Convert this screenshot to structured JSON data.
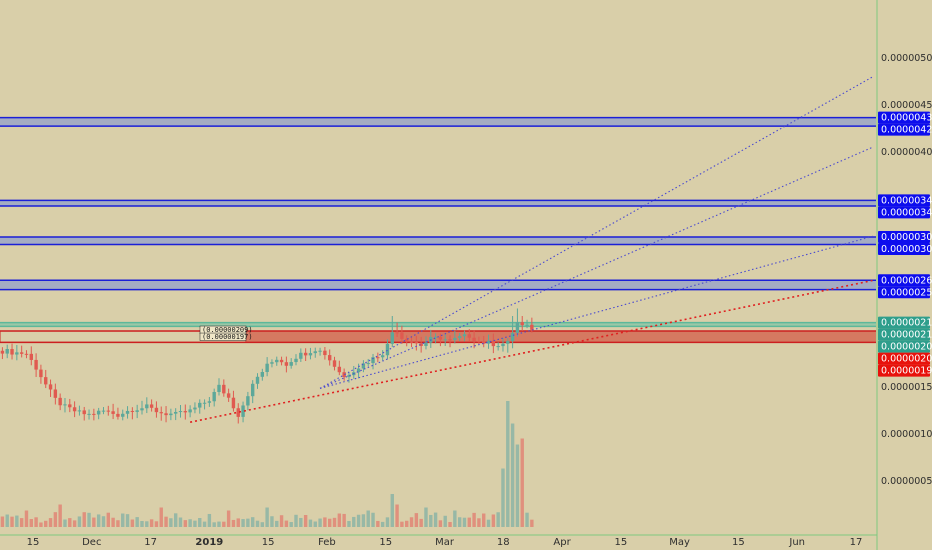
{
  "colors": {
    "background": "#d9cfa9",
    "up": "#5ca89a",
    "down": "#e05a50",
    "vol_up": "#8fb5a5",
    "vol_down": "#e08878",
    "blue_zone": "#1a1fd8",
    "red_zone": "#cc2020",
    "green_zone": "#5cb89a",
    "blue_badge": "#0d0dee",
    "red_badge": "#e8120c",
    "green_badge": "#2e9e8c",
    "fan": "#4a4ad0",
    "red_trend": "#e02020"
  },
  "chart_data": {
    "type": "candlestick",
    "symbol_unit": "BTC",
    "y_ticks": [
      "0.00000050",
      "0.00000100",
      "0.00000150",
      "0.00000400",
      "0.00000450",
      "0.00000500"
    ],
    "x_ticks": [
      {
        "label": "15",
        "bold": false
      },
      {
        "label": "Dec",
        "bold": false
      },
      {
        "label": "17",
        "bold": false
      },
      {
        "label": "2019",
        "bold": true
      },
      {
        "label": "15",
        "bold": false
      },
      {
        "label": "Feb",
        "bold": false
      },
      {
        "label": "15",
        "bold": false
      },
      {
        "label": "Mar",
        "bold": false
      },
      {
        "label": "18",
        "bold": false
      },
      {
        "label": "Apr",
        "bold": false
      },
      {
        "label": "15",
        "bold": false
      },
      {
        "label": "May",
        "bold": false
      },
      {
        "label": "15",
        "bold": false
      },
      {
        "label": "Jun",
        "bold": false
      },
      {
        "label": "17",
        "bold": false
      }
    ],
    "zones": [
      {
        "kind": "blue",
        "top": "0.00000436",
        "bottom": "0.00000427"
      },
      {
        "kind": "blue",
        "top": "0.00000348",
        "bottom": "0.00000342"
      },
      {
        "kind": "blue",
        "top": "0.00000309",
        "bottom": "0.00000301"
      },
      {
        "kind": "blue",
        "top": "0.00000263",
        "bottom": "0.00000253"
      },
      {
        "kind": "green",
        "top": "0.00000218",
        "bottom": "0.00000214"
      },
      {
        "kind": "red",
        "top": "0.00000209",
        "bottom": "0.00000197"
      }
    ],
    "level_badges": [
      {
        "label": "0.00000436",
        "kind": "blue"
      },
      {
        "label": "0.00000427",
        "kind": "blue"
      },
      {
        "label": "0.00000348",
        "kind": "blue"
      },
      {
        "label": "0.00000342",
        "kind": "blue"
      },
      {
        "label": "0.00000309",
        "kind": "blue"
      },
      {
        "label": "0.00000301",
        "kind": "blue"
      },
      {
        "label": "0.00000263",
        "kind": "blue"
      },
      {
        "label": "0.00000253",
        "kind": "blue"
      },
      {
        "label": "0.00000218",
        "kind": "green"
      },
      {
        "label": "0.00000214",
        "kind": "green"
      },
      {
        "label": "0.00000209",
        "kind": "green"
      },
      {
        "label": "0.00000205",
        "kind": "red"
      },
      {
        "label": "0.00000197",
        "kind": "red"
      }
    ],
    "zone_box_labels": [
      "(0.00000209)",
      "(0.00000197)"
    ],
    "candle_anchors": [
      [
        0,
        1.88
      ],
      [
        3,
        1.86
      ],
      [
        5,
        1.85
      ],
      [
        7,
        1.7
      ],
      [
        9,
        1.52
      ],
      [
        11,
        1.36
      ],
      [
        13,
        1.28
      ],
      [
        16,
        1.22
      ],
      [
        18,
        1.2
      ],
      [
        21,
        1.24
      ],
      [
        24,
        1.2
      ],
      [
        27,
        1.26
      ],
      [
        30,
        1.28
      ],
      [
        33,
        1.22
      ],
      [
        36,
        1.2
      ],
      [
        39,
        1.24
      ],
      [
        41,
        1.3
      ],
      [
        43,
        1.36
      ],
      [
        45,
        1.5
      ],
      [
        47,
        1.38
      ],
      [
        49,
        1.2
      ],
      [
        51,
        1.42
      ],
      [
        53,
        1.6
      ],
      [
        55,
        1.72
      ],
      [
        57,
        1.8
      ],
      [
        59,
        1.74
      ],
      [
        61,
        1.82
      ],
      [
        63,
        1.86
      ],
      [
        65,
        1.9
      ],
      [
        67,
        1.85
      ],
      [
        69,
        1.72
      ],
      [
        71,
        1.6
      ],
      [
        73,
        1.68
      ],
      [
        75,
        1.74
      ],
      [
        77,
        1.8
      ],
      [
        79,
        1.86
      ],
      [
        80,
        1.94
      ],
      [
        81,
        2.08
      ],
      [
        82,
        2.1
      ],
      [
        83,
        2.02
      ],
      [
        85,
        1.98
      ],
      [
        87,
        1.94
      ],
      [
        89,
        2.0
      ],
      [
        91,
        2.02
      ],
      [
        93,
        1.98
      ],
      [
        95,
        2.02
      ],
      [
        97,
        2.04
      ],
      [
        99,
        1.98
      ],
      [
        101,
        1.96
      ],
      [
        103,
        1.95
      ],
      [
        105,
        1.96
      ],
      [
        106,
        2.08
      ],
      [
        107,
        2.18
      ],
      [
        108,
        2.14
      ],
      [
        110,
        2.12
      ]
    ],
    "spikes": {
      "81": 2.25,
      "82": 2.18,
      "106": 2.25,
      "107": 2.33,
      "108": 2.25,
      "105": 1.86
    },
    "volume_by_index": {
      "0": 14,
      "5": 22,
      "12": 30,
      "25": 18,
      "33": 26,
      "41": 12,
      "47": 22,
      "55": 26,
      "63": 16,
      "70": 18,
      "76": 22,
      "81": 44,
      "82": 30,
      "88": 26,
      "94": 22,
      "100": 18,
      "104": 78,
      "105": 168,
      "106": 138,
      "107": 110,
      "108": 118
    },
    "fan_lines": [
      {
        "from": [
          66,
          1.48
        ],
        "to": [
          181,
          4.8
        ]
      },
      {
        "from": [
          66,
          1.48
        ],
        "to": [
          181,
          4.05
        ]
      },
      {
        "from": [
          66,
          1.48
        ],
        "to": [
          181,
          3.1
        ]
      },
      {
        "from": [
          39,
          1.12
        ],
        "to": [
          181,
          2.63
        ]
      }
    ],
    "price_scale": {
      "min": 0.0,
      "max": 5.5,
      "unit_note": "x 1e-6"
    },
    "time_scale": {
      "total_slots": 182,
      "candles": 111
    }
  }
}
